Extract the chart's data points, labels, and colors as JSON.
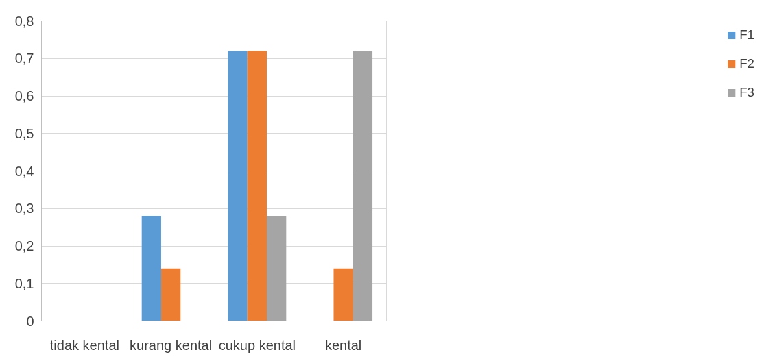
{
  "chart_data": {
    "type": "bar",
    "categories": [
      "tidak kental",
      "kurang kental",
      "cukup kental",
      "kental"
    ],
    "series": [
      {
        "name": "F1",
        "color": "#5b9bd5",
        "values": [
          0,
          0.28,
          0.72,
          0
        ]
      },
      {
        "name": "F2",
        "color": "#ed7d31",
        "values": [
          0,
          0.14,
          0.72,
          0.14
        ]
      },
      {
        "name": "F3",
        "color": "#a5a5a5",
        "values": [
          0,
          0,
          0.28,
          0.72
        ]
      }
    ],
    "ylim": [
      0,
      0.8
    ],
    "yticks": [
      {
        "value": 0,
        "label": "0"
      },
      {
        "value": 0.1,
        "label": "0,1"
      },
      {
        "value": 0.2,
        "label": "0,2"
      },
      {
        "value": 0.3,
        "label": "0,3"
      },
      {
        "value": 0.4,
        "label": "0,4"
      },
      {
        "value": 0.5,
        "label": "0,5"
      },
      {
        "value": 0.6,
        "label": "0,6"
      },
      {
        "value": 0.7,
        "label": "0,7"
      },
      {
        "value": 0.8,
        "label": "0,8"
      }
    ],
    "grid": "y",
    "legend": "right"
  }
}
